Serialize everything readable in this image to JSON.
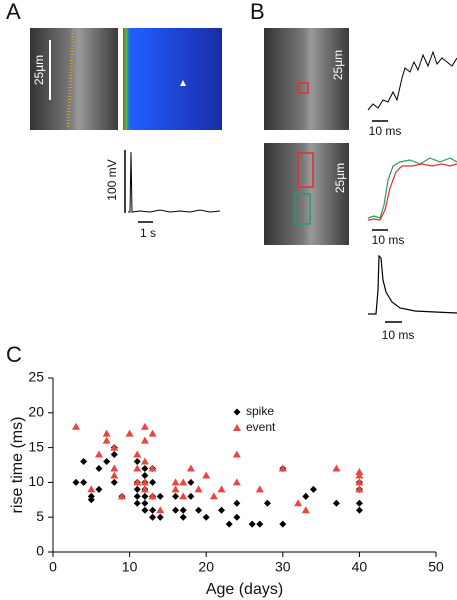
{
  "figure": {
    "panel_labels": [
      "A",
      "B",
      "C"
    ],
    "scale_labels": {
      "a_image": "25µm",
      "a_voltage": "100 mV",
      "a_time": "1 s",
      "b_image_1": "25µm",
      "b_trace_1": "10 ms",
      "b_image_2": "25µm",
      "b_trace_2": "10 ms",
      "b_trace_3": "10 ms"
    }
  },
  "chart_data": {
    "type": "scatter",
    "x_label": "Age (days)",
    "y_label": "rise time (ms)",
    "xlim": [
      0,
      50
    ],
    "xticks": [
      0,
      10,
      20,
      30,
      40,
      50
    ],
    "ylim": [
      0,
      25
    ],
    "yticks": [
      0,
      5,
      10,
      15,
      20,
      25
    ],
    "series": [
      {
        "name": "spike",
        "color": "#000000",
        "marker": "diamond",
        "x": [
          3,
          4,
          4,
          5,
          5,
          6,
          6,
          7,
          8,
          8,
          8,
          9,
          11,
          11,
          11,
          11,
          11,
          12,
          12,
          12,
          12,
          12,
          12,
          12,
          13,
          13,
          13,
          13,
          13,
          14,
          14,
          16,
          16,
          17,
          17,
          18,
          18,
          19,
          20,
          22,
          23,
          24,
          24,
          26,
          27,
          28,
          30,
          30,
          33,
          34,
          37,
          40,
          40,
          40,
          40
        ],
        "values": [
          10,
          13,
          10,
          8,
          7.5,
          9,
          12,
          13,
          10,
          14,
          15,
          8,
          13,
          10,
          9,
          8,
          7,
          12,
          11,
          10,
          9,
          8,
          7,
          6,
          12,
          10,
          8,
          6,
          5,
          8,
          5,
          8,
          6,
          6,
          5,
          10,
          8,
          6,
          5,
          6,
          4,
          7,
          5,
          4,
          4,
          7,
          4,
          12,
          8,
          9,
          7,
          10,
          9,
          7,
          6
        ]
      },
      {
        "name": "event",
        "color": "#e8473f",
        "marker": "triangle",
        "x": [
          3,
          5,
          6,
          7,
          7,
          8,
          8,
          8,
          9,
          10,
          11,
          11,
          11,
          12,
          12,
          12,
          12,
          12,
          13,
          13,
          13,
          14,
          16,
          16,
          17,
          17,
          18,
          19,
          20,
          21,
          22,
          24,
          24,
          27,
          30,
          32,
          33,
          37,
          40,
          40,
          40,
          40
        ],
        "values": [
          18,
          9,
          14,
          16,
          17,
          15,
          12,
          11,
          8,
          17,
          12,
          14,
          10,
          18,
          16,
          13,
          9,
          10,
          17,
          12,
          8,
          6,
          10,
          9,
          10,
          8,
          12,
          9,
          11,
          8,
          9,
          14,
          10,
          9,
          12,
          7,
          6,
          12,
          11.5,
          11,
          10,
          9
        ]
      }
    ]
  }
}
